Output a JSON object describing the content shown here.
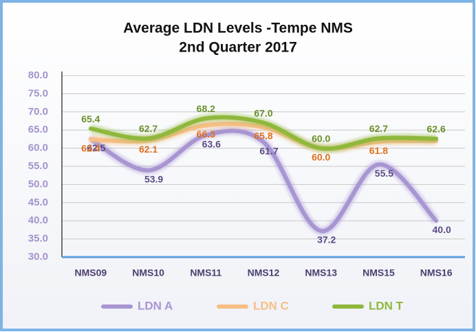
{
  "chart_data": {
    "type": "line",
    "title": "Average LDN Levels -Tempe NMS",
    "subtitle": "2nd Quarter 2017",
    "categories": [
      "NMS09",
      "NMS10",
      "NMS11",
      "NMS12",
      "NMS13",
      "NMS15",
      "NMS16"
    ],
    "series": [
      {
        "name": "LDN A",
        "color": "#a895d2",
        "label_color": "#5a4a86",
        "values": [
          62.5,
          53.9,
          63.6,
          61.7,
          37.2,
          55.5,
          40.0
        ],
        "value_labels": [
          "62.5",
          "53.9",
          "63.6",
          "61.7",
          "37.2",
          "55.5",
          "40.0"
        ]
      },
      {
        "name": "LDN C",
        "color": "#f7be86",
        "label_color": "#e0701e",
        "values": [
          62.4,
          62.1,
          66.3,
          65.8,
          60.0,
          61.8,
          62.0
        ],
        "value_labels": [
          "62.4",
          "62.1",
          "66.3",
          "65.8",
          "60.0",
          "61.8",
          null
        ]
      },
      {
        "name": "LDN T",
        "color": "#8fb83c",
        "label_color": "#6a9028",
        "values": [
          65.4,
          62.7,
          68.2,
          67.0,
          60.0,
          62.7,
          62.6
        ],
        "value_labels": [
          "65.4",
          "62.7",
          "68.2",
          "67.0",
          "60.0",
          "62.7",
          "62.6"
        ]
      }
    ],
    "ylim": [
      30,
      80
    ],
    "yticks": [
      {
        "value": 30,
        "label": "30.0"
      },
      {
        "value": 35,
        "label": "35.0"
      },
      {
        "value": 40,
        "label": "40.0"
      },
      {
        "value": 45,
        "label": "45.0"
      },
      {
        "value": 50,
        "label": "50.0"
      },
      {
        "value": 55,
        "label": "55.0"
      },
      {
        "value": 60,
        "label": "60.0"
      },
      {
        "value": 65,
        "label": "65.0"
      },
      {
        "value": 70,
        "label": "70.0"
      },
      {
        "value": 75,
        "label": "75.0"
      },
      {
        "value": 80,
        "label": "80.0"
      }
    ],
    "grid": true,
    "legend": "bottom"
  }
}
